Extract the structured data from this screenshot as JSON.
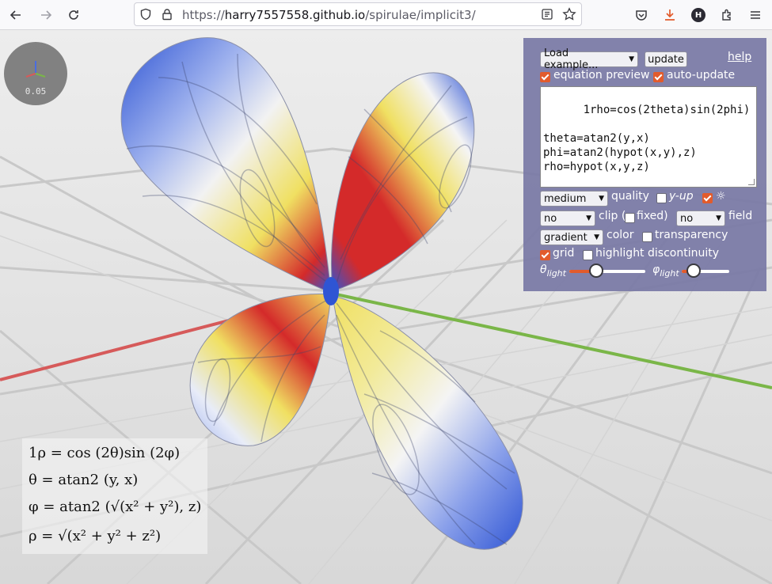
{
  "browser": {
    "url_host": "harry7557558.github.io",
    "url_path": "/spirulae/implicit3/",
    "url_scheme": "https://",
    "profile_initial": "H",
    "icons": [
      "back-icon",
      "forward-icon",
      "reload-icon",
      "shield-icon",
      "lock-icon",
      "reader-view-icon",
      "bookmark-star-icon",
      "pocket-icon",
      "download-icon",
      "extensions-icon",
      "menu-icon"
    ]
  },
  "viewport": {
    "scale_readout": "0.05",
    "colors": {
      "x_axis": "#d65a5a",
      "y_axis": "#7ab648",
      "z_axis": "#4a6de0",
      "surface_red": "#d42a2a",
      "surface_blue": "#2f55d4",
      "surface_yellow": "#f0e062"
    }
  },
  "panel": {
    "load_example_label": "Load example...",
    "update_label": "update",
    "help_label": "help",
    "equation_preview_label": "equation preview",
    "equation_preview_checked": true,
    "auto_update_label": "auto-update",
    "auto_update_checked": true,
    "equation_text": "1rho=cos(2theta)sin(2phi)\n\ntheta=atan2(y,x)\nphi=atan2(hypot(x,y),z)\nrho=hypot(x,y,z)",
    "quality_value": "medium",
    "quality_label": "quality",
    "y_up_label": "y-up",
    "y_up_checked": false,
    "light_label": "☼",
    "light_checked": true,
    "clip_value": "no",
    "clip_label": "clip (",
    "fixed_label": "fixed)",
    "fixed_checked": false,
    "field_value": "no",
    "field_label": "field",
    "color_value": "gradient",
    "color_label": "color",
    "transparency_label": "transparency",
    "transparency_checked": false,
    "grid_label": "grid",
    "grid_checked": true,
    "highlight_label": "highlight discontinuity",
    "highlight_checked": false,
    "theta_light_symbol": "θ",
    "theta_light_sub": "light",
    "theta_light_value": 0.35,
    "phi_light_symbol": "φ",
    "phi_light_sub": "light",
    "phi_light_value": 0.25
  },
  "formulas": {
    "line1": "1ρ = cos (2θ)sin (2φ)",
    "line2": "θ = atan2 (y, x)",
    "line3": "φ = atan2 (√(x² + y²), z)",
    "line4": "ρ = √(x² + y² + z²)"
  }
}
